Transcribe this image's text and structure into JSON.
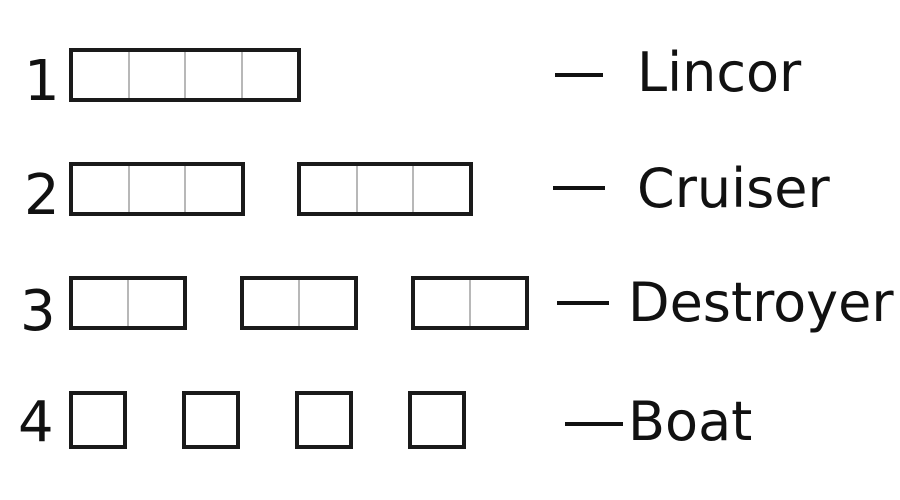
{
  "rows": [
    {
      "number": "1",
      "name": "Lincor",
      "ship_count": 1,
      "ship_size": 4
    },
    {
      "number": "2",
      "name": "Cruiser",
      "ship_count": 2,
      "ship_size": 3
    },
    {
      "number": "3",
      "name": "Destroyer",
      "ship_count": 3,
      "ship_size": 2
    },
    {
      "number": "4",
      "name": "Boat",
      "ship_count": 4,
      "ship_size": 1
    }
  ],
  "colors": {
    "border": "#1a1a1a",
    "cell_divider": "#b8b8b8",
    "text": "#111111"
  }
}
